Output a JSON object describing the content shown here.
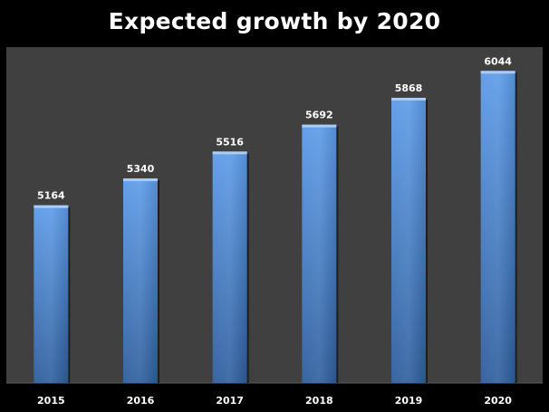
{
  "chart_data": {
    "type": "bar",
    "title": "Expected growth by 2020",
    "categories": [
      "2015",
      "2016",
      "2017",
      "2018",
      "2019",
      "2020"
    ],
    "values": [
      5164,
      5340,
      5516,
      5692,
      5868,
      6044
    ],
    "xlabel": "",
    "ylabel": "",
    "ylim": [
      4000,
      6200
    ],
    "grid": false,
    "legend": "none",
    "data_labels": true,
    "colors": {
      "bar_top": "#5c9be8",
      "bar_bottom": "#2e5d9c",
      "bar_highlight": "#a9cdf6",
      "plot_background": "#404040",
      "page_background": "#000000",
      "text": "#ffffff"
    }
  }
}
